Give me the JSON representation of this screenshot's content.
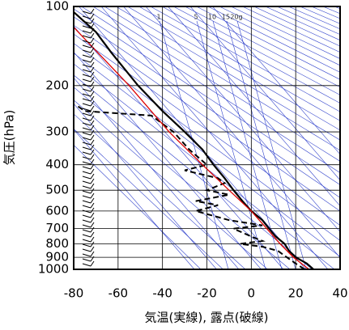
{
  "chart_data": {
    "type": "line",
    "x_label": "気温(実線), 露点(破線)",
    "y_label": "気圧(hPa)",
    "xlim": [
      -80,
      40
    ],
    "xticks": [
      -80,
      -60,
      -40,
      -20,
      0,
      20,
      40
    ],
    "ylim": [
      1000,
      100
    ],
    "yticks": [
      100,
      200,
      300,
      400,
      500,
      600,
      700,
      800,
      900,
      1000
    ],
    "yscale": "log",
    "grid": true,
    "annotations": [
      "1",
      "5",
      "10",
      "15",
      "20g"
    ],
    "series": [
      {
        "color": "#000000",
        "dash": false,
        "x": [
          28,
          25,
          20,
          17,
          15,
          11,
          8,
          5,
          0,
          -4,
          -8,
          -12,
          -17,
          -22,
          -30,
          -40,
          -51,
          -63,
          -70,
          -80
        ],
        "values": [
          1000,
          950,
          900,
          850,
          800,
          750,
          700,
          650,
          600,
          550,
          500,
          450,
          400,
          350,
          300,
          250,
          200,
          150,
          125,
          105
        ]
      },
      {
        "color": "#000000",
        "dash": true,
        "x": [
          24,
          20,
          16,
          12,
          5,
          -5,
          5,
          0,
          -8,
          5,
          -10,
          -25,
          -15,
          -25,
          -10,
          -20,
          -12,
          -15,
          -25,
          -30,
          -20,
          -28,
          -35,
          -45,
          -75,
          -78
        ],
        "values": [
          1000,
          950,
          900,
          850,
          820,
          800,
          780,
          750,
          700,
          680,
          650,
          600,
          570,
          550,
          520,
          500,
          470,
          450,
          430,
          420,
          400,
          350,
          300,
          260,
          250,
          240
        ]
      },
      {
        "color": "#dd0000",
        "dash": false,
        "x": [
          26,
          19,
          13,
          7,
          0,
          -10,
          -22,
          -37,
          -55,
          -80
        ],
        "values": [
          1000,
          900,
          800,
          700,
          600,
          500,
          400,
          300,
          200,
          120
        ]
      }
    ]
  }
}
